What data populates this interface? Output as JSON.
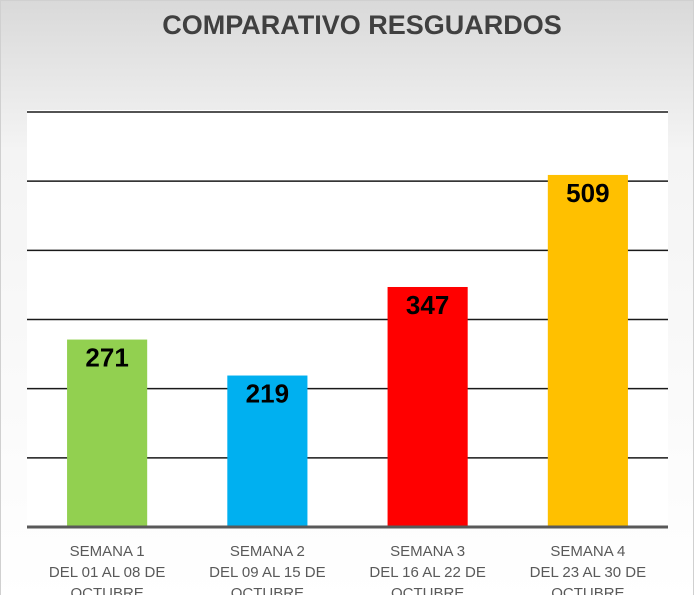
{
  "chart_data": {
    "type": "bar",
    "title": "COMPARATIVO RESGUARDOS",
    "categories": [
      [
        "SEMANA 1",
        "DEL 01 AL 08 DE",
        "OCTUBRE"
      ],
      [
        "SEMANA 2",
        "DEL 09 AL 15 DE",
        "OCTUBRE"
      ],
      [
        "SEMANA 3",
        "DEL 16 AL 22 DE",
        "OCTUBRE"
      ],
      [
        "SEMANA 4",
        "DEL 23 AL 30 DE",
        "OCTUBRE"
      ]
    ],
    "values": [
      271,
      219,
      347,
      509
    ],
    "colors": [
      "#92d050",
      "#00b0f0",
      "#ff0000",
      "#ffc000"
    ],
    "ylim": [
      0,
      600
    ],
    "yticks": [
      0,
      100,
      200,
      300,
      400,
      500,
      600
    ],
    "grid": true
  }
}
